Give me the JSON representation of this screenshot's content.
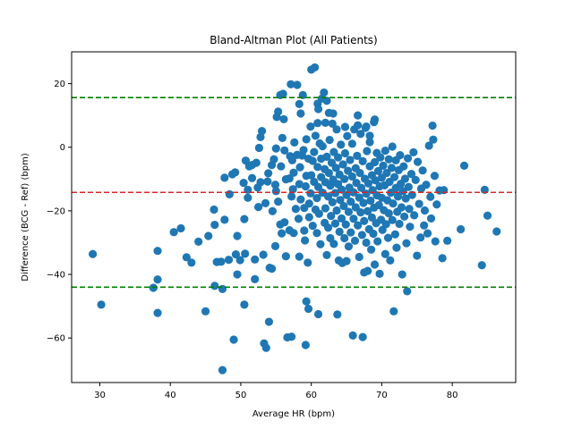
{
  "chart_data": {
    "type": "scatter",
    "title": "Bland-Altman Plot (All Patients)",
    "xlabel": "Average HR (bpm)",
    "ylabel": "Difference (BCG - Ref) (bpm)",
    "xlim": [
      26,
      89
    ],
    "ylim": [
      -74,
      30
    ],
    "xticks": [
      30,
      40,
      50,
      60,
      70,
      80
    ],
    "yticks": [
      -60,
      -40,
      -20,
      0,
      20
    ],
    "grid": false,
    "point_color": "#1f77b4",
    "reference_lines": [
      {
        "kind": "mean",
        "value": -14.2,
        "color": "#d62728",
        "style": "dashed"
      },
      {
        "kind": "upper_loa",
        "value": 15.6,
        "color": "#008000",
        "style": "dashed"
      },
      {
        "kind": "lower_loa",
        "value": -44.0,
        "color": "#008000",
        "style": "dashed"
      }
    ],
    "points": [
      [
        29.0,
        -33.6
      ],
      [
        30.2,
        -49.5
      ],
      [
        37.6,
        -44.2
      ],
      [
        38.2,
        -41.6
      ],
      [
        38.2,
        -52.1
      ],
      [
        38.2,
        -32.6
      ],
      [
        40.5,
        -26.7
      ],
      [
        41.5,
        -25.5
      ],
      [
        42.3,
        -34.6
      ],
      [
        43.0,
        -36.3
      ],
      [
        44.0,
        -29.7
      ],
      [
        45.0,
        -51.6
      ],
      [
        45.4,
        -27.9
      ],
      [
        46.2,
        -19.6
      ],
      [
        46.3,
        -24.4
      ],
      [
        46.6,
        -36.1
      ],
      [
        46.3,
        -43.6
      ],
      [
        47.2,
        -36.0
      ],
      [
        47.4,
        -44.6
      ],
      [
        47.4,
        -70.1
      ],
      [
        47.7,
        -22.8
      ],
      [
        47.7,
        -9.6
      ],
      [
        48.3,
        -35.4
      ],
      [
        48.4,
        -14.8
      ],
      [
        48.8,
        -8.5
      ],
      [
        49.0,
        -60.5
      ],
      [
        49.3,
        -33.7
      ],
      [
        49.5,
        -40.0
      ],
      [
        49.5,
        -27.9
      ],
      [
        49.9,
        -35.5
      ],
      [
        49.2,
        -7.9
      ],
      [
        50.4,
        -11.2
      ],
      [
        50.5,
        -49.5
      ],
      [
        50.5,
        -22.6
      ],
      [
        50.6,
        -33.5
      ],
      [
        50.7,
        -4.2
      ],
      [
        51.0,
        -13.4
      ],
      [
        51.0,
        -15.9
      ],
      [
        51.2,
        -6.0
      ],
      [
        51.6,
        -5.6
      ],
      [
        51.6,
        -9.7
      ],
      [
        52.0,
        -41.5
      ],
      [
        52.0,
        -35.3
      ],
      [
        52.2,
        -4.9
      ],
      [
        52.4,
        -12.7
      ],
      [
        52.5,
        -18.8
      ],
      [
        52.6,
        -0.2
      ],
      [
        52.8,
        -11.0
      ],
      [
        52.8,
        3.2
      ],
      [
        53.0,
        5.1
      ],
      [
        53.2,
        -33.8
      ],
      [
        53.3,
        -61.7
      ],
      [
        53.6,
        -63.1
      ],
      [
        53.5,
        -17.6
      ],
      [
        53.8,
        -10.8
      ],
      [
        53.9,
        -8.2
      ],
      [
        54.1,
        -37.9
      ],
      [
        54.0,
        -54.9
      ],
      [
        54.4,
        -38.2
      ],
      [
        54.4,
        -5.6
      ],
      [
        54.5,
        -20.1
      ],
      [
        54.7,
        -3.8
      ],
      [
        54.9,
        -11.8
      ],
      [
        54.9,
        -31.1
      ],
      [
        55.0,
        -13.8
      ],
      [
        55.0,
        -0.4
      ],
      [
        55.1,
        9.5
      ],
      [
        55.3,
        11.2
      ],
      [
        55.3,
        -17.1
      ],
      [
        55.6,
        -24.3
      ],
      [
        55.7,
        -6.0
      ],
      [
        55.8,
        -27.1
      ],
      [
        55.9,
        2.9
      ],
      [
        56.0,
        16.8
      ],
      [
        56.2,
        -1.0
      ],
      [
        56.2,
        -23.6
      ],
      [
        56.4,
        -10.1
      ],
      [
        56.4,
        -34.3
      ],
      [
        56.6,
        -59.8
      ],
      [
        56.9,
        -9.8
      ],
      [
        56.9,
        -26.1
      ],
      [
        57.0,
        -2.8
      ],
      [
        57.1,
        19.8
      ],
      [
        57.2,
        -15.5
      ],
      [
        57.2,
        -59.6
      ],
      [
        57.3,
        -4.1
      ],
      [
        57.4,
        -13.2
      ],
      [
        57.5,
        -27.0
      ],
      [
        57.5,
        -8.0
      ],
      [
        57.6,
        1.5
      ],
      [
        57.8,
        -19.4
      ],
      [
        58.0,
        -2.4
      ],
      [
        58.0,
        19.6
      ],
      [
        58.2,
        -22.5
      ],
      [
        58.3,
        -34.4
      ],
      [
        58.3,
        -11.6
      ],
      [
        58.4,
        -6.3
      ],
      [
        58.5,
        -16.4
      ],
      [
        58.5,
        10.6
      ],
      [
        58.7,
        -2.6
      ],
      [
        58.8,
        16.4
      ],
      [
        58.9,
        -0.9
      ],
      [
        59.0,
        -19.1
      ],
      [
        59.0,
        -26.2
      ],
      [
        59.1,
        -29.3
      ],
      [
        59.2,
        -62.2
      ],
      [
        59.2,
        -12.3
      ],
      [
        59.3,
        -9.0
      ],
      [
        59.3,
        2.5
      ],
      [
        59.3,
        -48.5
      ],
      [
        59.5,
        -36.3
      ],
      [
        59.6,
        -50.8
      ],
      [
        59.6,
        -3.6
      ],
      [
        59.7,
        -17.7
      ],
      [
        59.7,
        -22.0
      ],
      [
        59.9,
        6.5
      ],
      [
        59.9,
        -14.5
      ],
      [
        60.0,
        24.4
      ],
      [
        60.0,
        -8.8
      ],
      [
        60.2,
        -4.3
      ],
      [
        60.2,
        -24.7
      ],
      [
        60.4,
        -1.5
      ],
      [
        60.4,
        -10.9
      ],
      [
        60.5,
        25.1
      ],
      [
        60.6,
        3.6
      ],
      [
        60.6,
        -19.6
      ],
      [
        60.8,
        -16.0
      ],
      [
        60.8,
        -27.0
      ],
      [
        60.9,
        -6.2
      ],
      [
        60.9,
        7.6
      ],
      [
        61.0,
        -52.5
      ],
      [
        61.0,
        -12.5
      ],
      [
        61.1,
        -20.9
      ],
      [
        61.2,
        1.2
      ],
      [
        61.3,
        -30.5
      ],
      [
        61.4,
        -9.4
      ],
      [
        61.4,
        -3.6
      ],
      [
        61.5,
        15.3
      ],
      [
        61.6,
        -14.3
      ],
      [
        61.6,
        0.3
      ],
      [
        61.8,
        17.2
      ],
      [
        61.9,
        -23.8
      ],
      [
        61.9,
        -6.9
      ],
      [
        62.0,
        -11.0
      ],
      [
        62.0,
        -19.2
      ],
      [
        62.0,
        7.7
      ],
      [
        62.2,
        -33.9
      ],
      [
        62.2,
        -3.0
      ],
      [
        62.4,
        -25.3
      ],
      [
        62.4,
        -15.5
      ],
      [
        62.5,
        10.8
      ],
      [
        62.5,
        -8.1
      ],
      [
        62.6,
        2.3
      ],
      [
        62.7,
        -28.6
      ],
      [
        62.7,
        -12.1
      ],
      [
        62.8,
        -21.6
      ],
      [
        62.9,
        -4.9
      ],
      [
        63.0,
        7.4
      ],
      [
        63.0,
        -17.3
      ],
      [
        63.1,
        -10.2
      ],
      [
        63.2,
        -1.5
      ],
      [
        63.2,
        -30.4
      ],
      [
        63.4,
        -14.4
      ],
      [
        63.4,
        -24.0
      ],
      [
        63.5,
        -6.5
      ],
      [
        63.6,
        5.6
      ],
      [
        63.6,
        -19.9
      ],
      [
        63.7,
        -52.6
      ],
      [
        63.8,
        -11.6
      ],
      [
        63.8,
        -3.2
      ],
      [
        63.9,
        -35.6
      ],
      [
        64.0,
        -26.6
      ],
      [
        64.0,
        -8.6
      ],
      [
        64.1,
        -16.6
      ],
      [
        64.2,
        0.8
      ],
      [
        64.3,
        -22.4
      ],
      [
        64.3,
        -13.3
      ],
      [
        64.4,
        -36.4
      ],
      [
        64.5,
        -5.4
      ],
      [
        64.6,
        -18.5
      ],
      [
        64.7,
        -28.6
      ],
      [
        64.7,
        -10.0
      ],
      [
        64.8,
        -1.9
      ],
      [
        64.9,
        -24.3
      ],
      [
        65.0,
        -35.8
      ],
      [
        65.0,
        -15.0
      ],
      [
        65.1,
        3.5
      ],
      [
        65.2,
        -7.4
      ],
      [
        65.3,
        -20.3
      ],
      [
        65.3,
        -31.2
      ],
      [
        65.4,
        -12.7
      ],
      [
        65.5,
        -4.0
      ],
      [
        65.6,
        -17.1
      ],
      [
        65.6,
        -26.8
      ],
      [
        65.8,
        1.1
      ],
      [
        65.8,
        -9.2
      ],
      [
        65.9,
        -59.2
      ],
      [
        66.0,
        -22.5
      ],
      [
        66.0,
        -14.2
      ],
      [
        66.1,
        5.6
      ],
      [
        66.2,
        -29.4
      ],
      [
        66.3,
        -6.6
      ],
      [
        66.3,
        -18.9
      ],
      [
        66.4,
        -11.2
      ],
      [
        66.5,
        -2.7
      ],
      [
        66.6,
        10.0
      ],
      [
        66.6,
        -24.6
      ],
      [
        66.8,
        -15.8
      ],
      [
        66.8,
        -34.5
      ],
      [
        66.9,
        -8.1
      ],
      [
        67.0,
        -20.5
      ],
      [
        67.0,
        4.2
      ],
      [
        67.1,
        -12.8
      ],
      [
        67.2,
        -27.6
      ],
      [
        67.3,
        -59.7
      ],
      [
        67.3,
        -4.4
      ],
      [
        67.4,
        -17.5
      ],
      [
        67.5,
        -39.4
      ],
      [
        67.5,
        -23.2
      ],
      [
        67.6,
        -9.9
      ],
      [
        67.7,
        6.1
      ],
      [
        67.8,
        -14.6
      ],
      [
        67.8,
        -30.0
      ],
      [
        67.9,
        -1.2
      ],
      [
        68.0,
        -20.1
      ],
      [
        68.0,
        -38.9
      ],
      [
        68.1,
        -11.4
      ],
      [
        68.2,
        -25.8
      ],
      [
        68.3,
        -6.0
      ],
      [
        68.3,
        3.6
      ],
      [
        68.4,
        -16.8
      ],
      [
        68.5,
        -32.2
      ],
      [
        68.6,
        -22.1
      ],
      [
        68.6,
        -8.8
      ],
      [
        68.7,
        -13.5
      ],
      [
        68.8,
        -27.2
      ],
      [
        68.9,
        7.9
      ],
      [
        68.9,
        -19.0
      ],
      [
        69.0,
        -36.9
      ],
      [
        69.0,
        -4.7
      ],
      [
        69.1,
        -10.4
      ],
      [
        69.2,
        -23.9
      ],
      [
        69.3,
        -15.1
      ],
      [
        69.3,
        -1.8
      ],
      [
        69.4,
        -29.6
      ],
      [
        69.5,
        -7.5
      ],
      [
        69.6,
        -18.2
      ],
      [
        69.7,
        -12.3
      ],
      [
        69.7,
        -39.8
      ],
      [
        69.8,
        -3.2
      ],
      [
        69.9,
        -22.8
      ],
      [
        70.0,
        -9.6
      ],
      [
        70.0,
        -15.9
      ],
      [
        70.1,
        -26.0
      ],
      [
        70.2,
        -5.8
      ],
      [
        70.3,
        -19.8
      ],
      [
        70.4,
        -12.0
      ],
      [
        70.5,
        -1.1
      ],
      [
        70.5,
        -33.6
      ],
      [
        70.6,
        -24.2
      ],
      [
        70.7,
        -8.1
      ],
      [
        70.8,
        -16.7
      ],
      [
        70.9,
        -28.5
      ],
      [
        71.0,
        -3.8
      ],
      [
        71.0,
        -20.8
      ],
      [
        71.1,
        -10.9
      ],
      [
        71.2,
        -35.6
      ],
      [
        71.3,
        -14.3
      ],
      [
        71.4,
        -6.5
      ],
      [
        71.5,
        0.2
      ],
      [
        71.5,
        -22.9
      ],
      [
        71.6,
        -17.7
      ],
      [
        71.7,
        -51.6
      ],
      [
        71.8,
        -9.4
      ],
      [
        71.9,
        -27.4
      ],
      [
        72.0,
        -12.8
      ],
      [
        72.0,
        -4.1
      ],
      [
        72.1,
        -31.6
      ],
      [
        72.2,
        -20.3
      ],
      [
        72.3,
        -15.5
      ],
      [
        72.4,
        -7.2
      ],
      [
        72.5,
        -24.1
      ],
      [
        72.6,
        -2.5
      ],
      [
        72.7,
        -11.5
      ],
      [
        72.8,
        -18.9
      ],
      [
        72.9,
        -40.0
      ],
      [
        73.0,
        -13.8
      ],
      [
        73.1,
        -6.0
      ],
      [
        73.2,
        -21.8
      ],
      [
        73.3,
        -9.9
      ],
      [
        73.4,
        -16.1
      ],
      [
        73.5,
        -30.2
      ],
      [
        73.6,
        -45.3
      ],
      [
        73.7,
        -3.5
      ],
      [
        73.8,
        -12.5
      ],
      [
        73.9,
        -19.4
      ],
      [
        74.0,
        -25.0
      ],
      [
        74.2,
        -8.4
      ],
      [
        74.3,
        -15.0
      ],
      [
        74.5,
        -1.6
      ],
      [
        74.6,
        -21.4
      ],
      [
        74.8,
        -10.3
      ],
      [
        75.0,
        -34.1
      ],
      [
        75.1,
        -4.6
      ],
      [
        75.3,
        -17.8
      ],
      [
        75.5,
        -28.4
      ],
      [
        75.6,
        -13.0
      ],
      [
        75.8,
        -7.3
      ],
      [
        76.0,
        -24.6
      ],
      [
        76.1,
        -19.9
      ],
      [
        76.3,
        -11.8
      ],
      [
        76.5,
        -27.1
      ],
      [
        76.7,
        0.5
      ],
      [
        76.9,
        -15.6
      ],
      [
        77.0,
        -22.4
      ],
      [
        77.2,
        6.8
      ],
      [
        77.3,
        2.4
      ],
      [
        77.5,
        -9.0
      ],
      [
        77.6,
        -29.6
      ],
      [
        77.8,
        -18.0
      ],
      [
        78.2,
        -13.6
      ],
      [
        78.6,
        -34.9
      ],
      [
        78.8,
        -13.5
      ],
      [
        79.3,
        -29.4
      ],
      [
        81.2,
        -25.8
      ],
      [
        81.7,
        -5.8
      ],
      [
        84.2,
        -37.1
      ],
      [
        84.6,
        -13.4
      ],
      [
        85.0,
        -21.5
      ],
      [
        86.3,
        -26.5
      ],
      [
        56.1,
        8.8
      ],
      [
        55.6,
        16.4
      ],
      [
        58.3,
        13.6
      ],
      [
        62.2,
        14.6
      ],
      [
        60.9,
        13.7
      ],
      [
        64.8,
        6.4
      ],
      [
        66.6,
        6.9
      ],
      [
        67.8,
        6.5
      ],
      [
        69.0,
        8.7
      ],
      [
        61.0,
        12.0
      ],
      [
        63.1,
        10.6
      ],
      [
        68.3,
        1.6
      ]
    ]
  }
}
